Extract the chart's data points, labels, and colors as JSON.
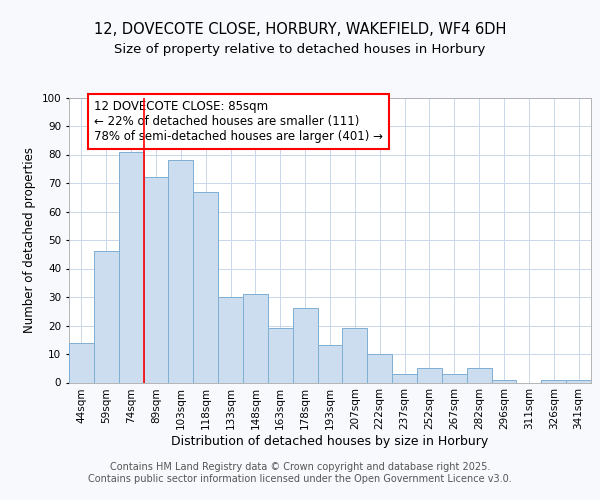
{
  "title": "12, DOVECOTE CLOSE, HORBURY, WAKEFIELD, WF4 6DH",
  "subtitle": "Size of property relative to detached houses in Horbury",
  "xlabel": "Distribution of detached houses by size in Horbury",
  "ylabel": "Number of detached properties",
  "categories": [
    "44sqm",
    "59sqm",
    "74sqm",
    "89sqm",
    "103sqm",
    "118sqm",
    "133sqm",
    "148sqm",
    "163sqm",
    "178sqm",
    "193sqm",
    "207sqm",
    "222sqm",
    "237sqm",
    "252sqm",
    "267sqm",
    "282sqm",
    "296sqm",
    "311sqm",
    "326sqm",
    "341sqm"
  ],
  "values": [
    14,
    46,
    81,
    72,
    78,
    67,
    30,
    31,
    19,
    26,
    13,
    19,
    10,
    3,
    5,
    3,
    5,
    1,
    0,
    1,
    1
  ],
  "bar_color": "#ccddf0",
  "bar_edge_color": "#7fafd4",
  "vline_color": "red",
  "vline_pos": 2.5,
  "annotation_text": "12 DOVECOTE CLOSE: 85sqm\n← 22% of detached houses are smaller (111)\n78% of semi-detached houses are larger (401) →",
  "annotation_box_color": "white",
  "annotation_box_edgecolor": "red",
  "ylim": [
    0,
    100
  ],
  "yticks": [
    0,
    10,
    20,
    30,
    40,
    50,
    60,
    70,
    80,
    90,
    100
  ],
  "footer_line1": "Contains HM Land Registry data © Crown copyright and database right 2025.",
  "footer_line2": "Contains public sector information licensed under the Open Government Licence v3.0.",
  "background_color": "#f7f9fc",
  "plot_bg_color": "#ffffff",
  "grid_color": "#c8d8ea",
  "title_fontsize": 10.5,
  "subtitle_fontsize": 9.5,
  "xlabel_fontsize": 9,
  "ylabel_fontsize": 8.5,
  "tick_fontsize": 7.5,
  "annotation_fontsize": 8.5,
  "footer_fontsize": 7
}
